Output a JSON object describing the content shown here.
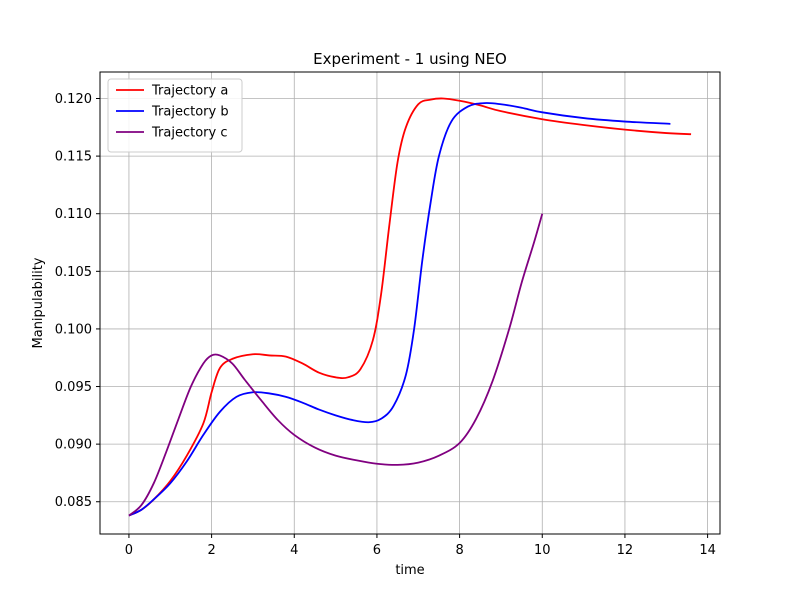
{
  "chart_data": {
    "type": "line",
    "title": "Experiment - 1 using NEO",
    "xlabel": "time",
    "ylabel": "Manipulability",
    "xlim": [
      -0.7,
      14.3
    ],
    "ylim": [
      0.0822,
      0.1223
    ],
    "xticks": [
      0,
      2,
      4,
      6,
      8,
      10,
      12,
      14
    ],
    "yticks": [
      0.085,
      0.09,
      0.095,
      0.1,
      0.105,
      0.11,
      0.115,
      0.12
    ],
    "ytick_labels": [
      "0.085",
      "0.090",
      "0.095",
      "0.100",
      "0.105",
      "0.110",
      "0.115",
      "0.120"
    ],
    "grid": true,
    "legend_position": "top-left",
    "series": [
      {
        "name": "Trajectory a",
        "color": "#ff0000",
        "points": [
          [
            0.0,
            0.0838
          ],
          [
            0.3,
            0.0843
          ],
          [
            0.6,
            0.0852
          ],
          [
            1.0,
            0.0868
          ],
          [
            1.4,
            0.089
          ],
          [
            1.8,
            0.0918
          ],
          [
            2.0,
            0.0945
          ],
          [
            2.2,
            0.0966
          ],
          [
            2.5,
            0.0974
          ],
          [
            3.0,
            0.0978
          ],
          [
            3.4,
            0.0977
          ],
          [
            3.8,
            0.0976
          ],
          [
            4.2,
            0.097
          ],
          [
            4.6,
            0.0962
          ],
          [
            5.0,
            0.0958
          ],
          [
            5.3,
            0.0958
          ],
          [
            5.6,
            0.0965
          ],
          [
            5.9,
            0.099
          ],
          [
            6.1,
            0.103
          ],
          [
            6.3,
            0.109
          ],
          [
            6.5,
            0.1145
          ],
          [
            6.7,
            0.1175
          ],
          [
            7.0,
            0.1195
          ],
          [
            7.3,
            0.1199
          ],
          [
            7.6,
            0.12
          ],
          [
            8.0,
            0.1198
          ],
          [
            8.5,
            0.1194
          ],
          [
            9.0,
            0.1189
          ],
          [
            10.0,
            0.1182
          ],
          [
            11.0,
            0.1177
          ],
          [
            12.0,
            0.1173
          ],
          [
            13.0,
            0.117
          ],
          [
            13.6,
            0.1169
          ]
        ]
      },
      {
        "name": "Trajectory b",
        "color": "#0000ff",
        "points": [
          [
            0.0,
            0.0838
          ],
          [
            0.3,
            0.0843
          ],
          [
            0.6,
            0.0852
          ],
          [
            1.0,
            0.0866
          ],
          [
            1.4,
            0.0885
          ],
          [
            1.8,
            0.0908
          ],
          [
            2.2,
            0.0928
          ],
          [
            2.6,
            0.0941
          ],
          [
            3.0,
            0.0945
          ],
          [
            3.4,
            0.0944
          ],
          [
            3.8,
            0.0941
          ],
          [
            4.2,
            0.0936
          ],
          [
            4.6,
            0.093
          ],
          [
            5.0,
            0.0925
          ],
          [
            5.4,
            0.0921
          ],
          [
            5.8,
            0.0919
          ],
          [
            6.1,
            0.0922
          ],
          [
            6.4,
            0.0933
          ],
          [
            6.7,
            0.096
          ],
          [
            6.9,
            0.1
          ],
          [
            7.1,
            0.106
          ],
          [
            7.3,
            0.111
          ],
          [
            7.5,
            0.115
          ],
          [
            7.8,
            0.118
          ],
          [
            8.2,
            0.1193
          ],
          [
            8.6,
            0.1196
          ],
          [
            9.0,
            0.1195
          ],
          [
            9.5,
            0.1192
          ],
          [
            10.0,
            0.1188
          ],
          [
            11.0,
            0.1183
          ],
          [
            12.0,
            0.118
          ],
          [
            13.1,
            0.1178
          ]
        ]
      },
      {
        "name": "Trajectory c",
        "color": "#800080",
        "points": [
          [
            0.0,
            0.0838
          ],
          [
            0.3,
            0.0847
          ],
          [
            0.6,
            0.0866
          ],
          [
            0.9,
            0.0893
          ],
          [
            1.2,
            0.0922
          ],
          [
            1.5,
            0.095
          ],
          [
            1.8,
            0.097
          ],
          [
            2.0,
            0.0977
          ],
          [
            2.2,
            0.0977
          ],
          [
            2.5,
            0.097
          ],
          [
            2.8,
            0.0956
          ],
          [
            3.2,
            0.0938
          ],
          [
            3.6,
            0.0921
          ],
          [
            4.0,
            0.0908
          ],
          [
            4.5,
            0.0897
          ],
          [
            5.0,
            0.089
          ],
          [
            5.5,
            0.0886
          ],
          [
            6.0,
            0.0883
          ],
          [
            6.5,
            0.0882
          ],
          [
            7.0,
            0.0884
          ],
          [
            7.5,
            0.089
          ],
          [
            8.0,
            0.0901
          ],
          [
            8.4,
            0.0922
          ],
          [
            8.8,
            0.0955
          ],
          [
            9.2,
            0.1
          ],
          [
            9.5,
            0.104
          ],
          [
            9.8,
            0.1075
          ],
          [
            10.0,
            0.11
          ]
        ]
      }
    ]
  }
}
